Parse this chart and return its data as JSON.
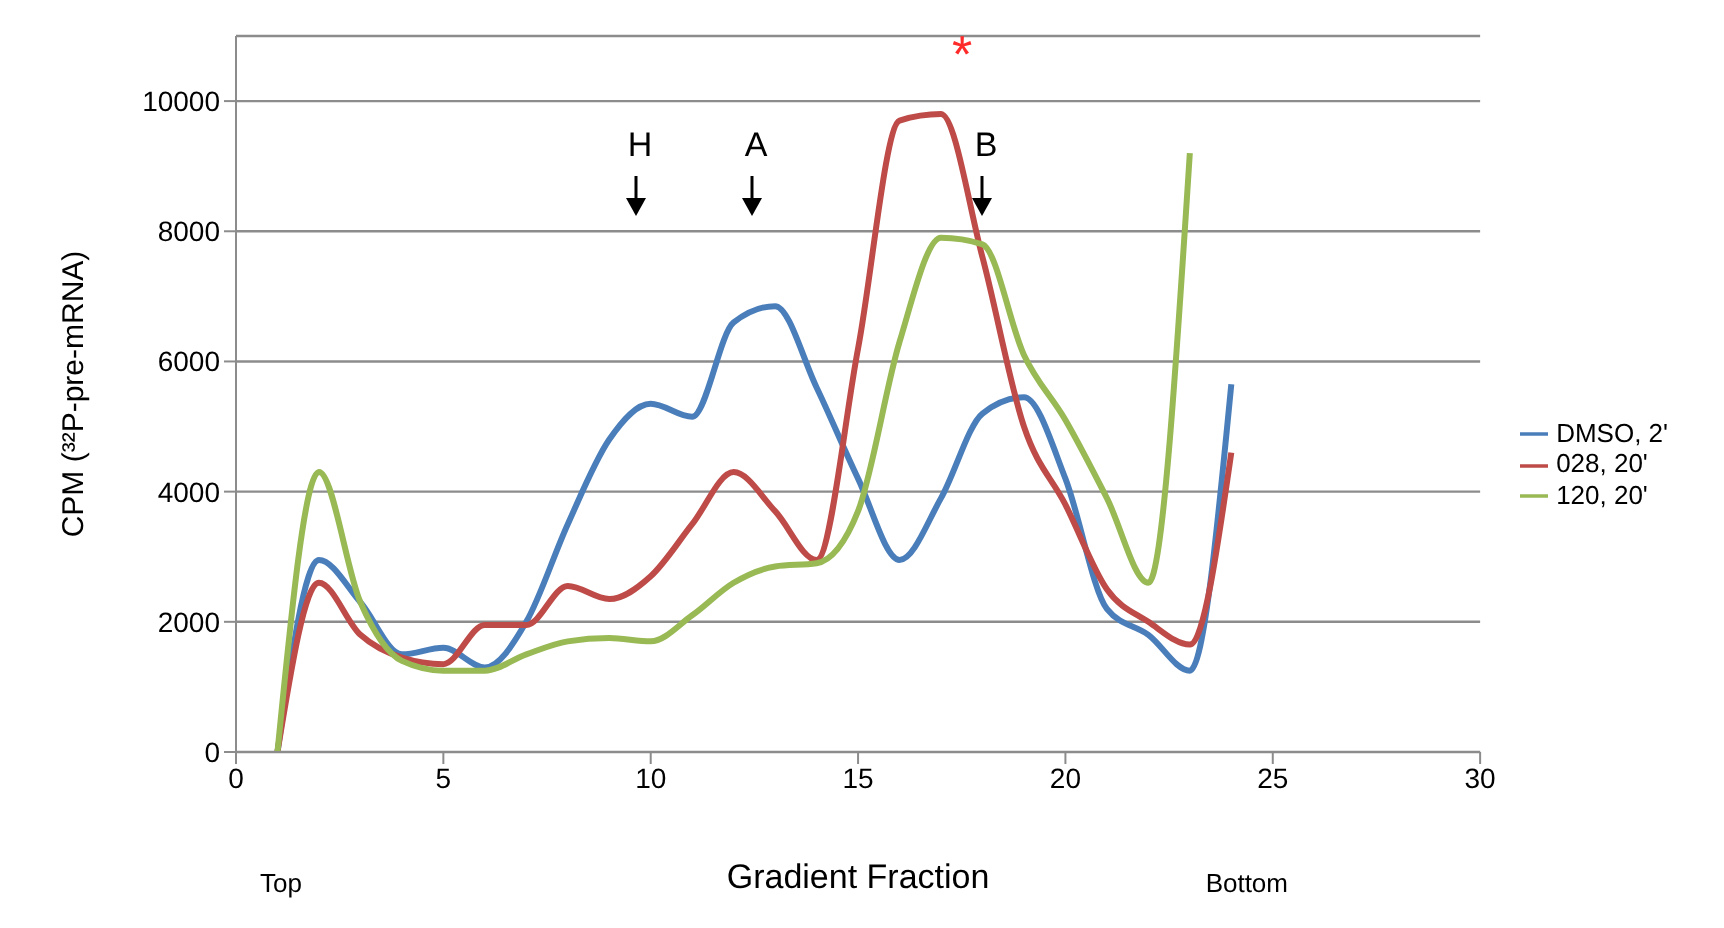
{
  "chart_data": {
    "type": "line",
    "xlabel": "Gradient Fraction",
    "ylabel": "CPM (³²P-pre-mRNA)",
    "x": [
      1,
      2,
      3,
      4,
      5,
      6,
      7,
      8,
      9,
      10,
      11,
      12,
      13,
      14,
      15,
      16,
      17,
      18,
      19,
      20,
      21,
      22,
      23,
      24
    ],
    "series": [
      {
        "name": "DMSO, 2'",
        "color": "#4a7ebb",
        "values": [
          0,
          2950,
          2300,
          1500,
          1600,
          1300,
          2000,
          3500,
          4800,
          5350,
          5150,
          6600,
          6850,
          5600,
          4200,
          2950,
          3900,
          5200,
          5450,
          4200,
          2200,
          1800,
          1250,
          5650
        ]
      },
      {
        "name": "028, 20'",
        "color": "#be4b48",
        "values": [
          0,
          2600,
          1800,
          1450,
          1350,
          1950,
          1950,
          2550,
          2350,
          2700,
          3500,
          4300,
          3700,
          2950,
          6200,
          9700,
          9800,
          7600,
          5000,
          3800,
          2500,
          2000,
          1650,
          4600
        ]
      },
      {
        "name": "120, 20'",
        "color": "#98b954",
        "values": [
          0,
          4300,
          2300,
          1400,
          1250,
          1250,
          1500,
          1700,
          1750,
          1700,
          2100,
          2600,
          2850,
          2900,
          3700,
          6300,
          7900,
          7800,
          6100,
          5100,
          3900,
          2600,
          9200,
          null
        ]
      }
    ],
    "xlim": [
      0,
      30
    ],
    "xticks": [
      0,
      5,
      10,
      15,
      20,
      25,
      30
    ],
    "ylim": [
      0,
      11000
    ],
    "yticks": [
      0,
      2000,
      4000,
      6000,
      8000,
      10000
    ],
    "grid": "y",
    "legend": "right",
    "marker": "none",
    "line_style": "solid",
    "annotations": [
      "H",
      "A",
      "B",
      "*",
      "Top",
      "Bottom"
    ]
  }
}
